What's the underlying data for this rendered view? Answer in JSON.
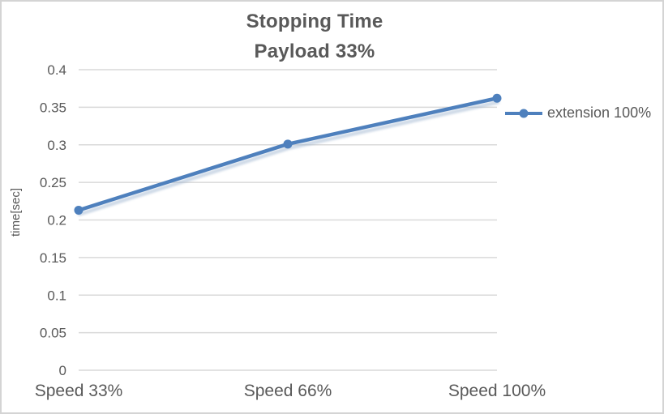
{
  "window": {
    "background_color": "#ffffff",
    "border_color": "#d4d4d4"
  },
  "chart_data": {
    "type": "line",
    "title": "Stopping Time",
    "subtitle": "Payload 33%",
    "categories": [
      "Speed 33%",
      "Speed 66%",
      "Speed 100%"
    ],
    "series": [
      {
        "name": "extension 100%",
        "values": [
          0.213,
          0.301,
          0.362
        ],
        "color": "#4e80bd",
        "marker": "circle",
        "shadow_color": "#9db4cf"
      }
    ],
    "xlabel": "",
    "ylabel": "time[sec]",
    "ylim": [
      0,
      0.4
    ],
    "ytick_step": 0.05,
    "yticks": [
      "0",
      "0.05",
      "0.1",
      "0.15",
      "0.2",
      "0.25",
      "0.3",
      "0.35",
      "0.4"
    ],
    "grid": "horizontal",
    "gridline_color": "#d9d9d9",
    "text_color": "#595959",
    "legend_position": "right"
  }
}
